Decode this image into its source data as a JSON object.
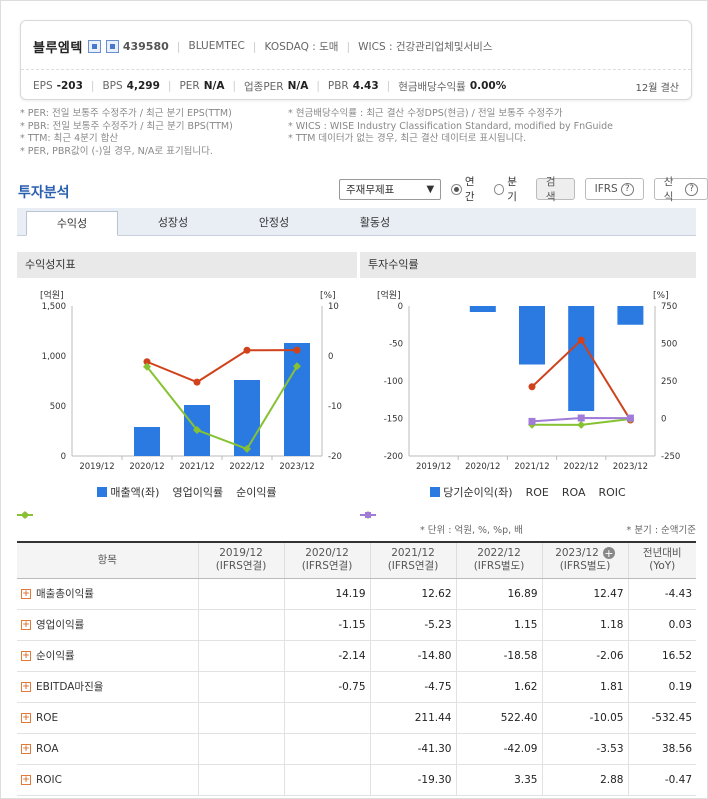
{
  "company": {
    "name": "블루엠텍",
    "code": "439580",
    "eng_name": "BLUEMTEC",
    "market": "KOSDAQ : 도매",
    "wics": "WICS : 건강관리업체및서비스",
    "fiscal": "12월 결산"
  },
  "metrics": [
    {
      "label": "EPS",
      "value": "-203"
    },
    {
      "label": "BPS",
      "value": "4,299"
    },
    {
      "label": "PER",
      "value": "N/A"
    },
    {
      "label": "업종PER",
      "value": "N/A"
    },
    {
      "label": "PBR",
      "value": "4.43"
    },
    {
      "label": "현금배당수익률",
      "value": "0.00%"
    }
  ],
  "notes": {
    "col1": [
      "* PER: 전일 보통주 수정주가 / 최근 분기 EPS(TTM)",
      "* PBR: 전일 보통주 수정주가 / 최근 분기 BPS(TTM)",
      "* TTM: 최근 4분기 합산",
      "* PER, PBR값이 (-)일 경우, N/A로 표기됩니다."
    ],
    "col2": [
      "* 현금배당수익률 : 최근 결산 수정DPS(현금) / 전일 보통주 수정주가",
      "* WICS : WISE Industry Classification Standard, modified by FnGuide",
      "* TTM 데이터가 없는 경우, 최근 결산 데이터로 표시됩니다."
    ]
  },
  "section": {
    "title": "투자분석",
    "select_value": "주재무제표",
    "radio_annual": "연간",
    "radio_quarter": "분기",
    "search_label": "검색",
    "ifrs_label": "IFRS",
    "formula_label": "산식"
  },
  "tabs": [
    "수익성",
    "성장성",
    "안정성",
    "활동성"
  ],
  "panels": {
    "left_title": "수익성지표",
    "right_title": "투자수익률"
  },
  "colors": {
    "bar": "#2a7ae2",
    "op_line": "#d0421b",
    "net_line": "#86c232",
    "roic": "#a07cd8"
  },
  "chart_data": [
    {
      "type": "bar",
      "title": "수익성지표",
      "categories": [
        "2019/12",
        "2020/12",
        "2021/12",
        "2022/12",
        "2023/12"
      ],
      "y_left_unit": "[억원]",
      "y_right_unit": "[%]",
      "ylim_left": [
        0,
        1500
      ],
      "ylim_right": [
        -20,
        10
      ],
      "left_ticks": [
        "0",
        "500",
        "1,000",
        "1,500"
      ],
      "right_ticks": [
        "-20",
        "-10",
        "0",
        "10"
      ],
      "series": [
        {
          "name": "매출액(좌)",
          "kind": "bar",
          "axis": "left",
          "values": [
            null,
            290,
            510,
            760,
            1130
          ]
        },
        {
          "name": "영업이익률",
          "kind": "line",
          "axis": "right",
          "values": [
            null,
            -1.15,
            -5.23,
            1.15,
            1.18
          ]
        },
        {
          "name": "순이익률",
          "kind": "line",
          "axis": "right",
          "values": [
            null,
            -2.14,
            -14.8,
            -18.58,
            -2.06
          ]
        }
      ]
    },
    {
      "type": "bar",
      "title": "투자수익률",
      "categories": [
        "2019/12",
        "2020/12",
        "2021/12",
        "2022/12",
        "2023/12"
      ],
      "y_left_unit": "[억원]",
      "y_right_unit": "[%]",
      "ylim_left": [
        -200,
        0
      ],
      "ylim_right": [
        -250,
        750
      ],
      "left_ticks": [
        "-200",
        "-150",
        "-100",
        "-50",
        "0"
      ],
      "right_ticks": [
        "-250",
        "0",
        "250",
        "500",
        "750"
      ],
      "series": [
        {
          "name": "당기순이익(좌)",
          "kind": "bar",
          "axis": "left",
          "values": [
            null,
            -8,
            -78,
            -140,
            -25
          ]
        },
        {
          "name": "ROE",
          "kind": "line",
          "axis": "right",
          "values": [
            null,
            null,
            211.44,
            522.4,
            -10.05
          ]
        },
        {
          "name": "ROA",
          "kind": "line",
          "axis": "right",
          "values": [
            null,
            null,
            -41.3,
            -42.09,
            -3.53
          ]
        },
        {
          "name": "ROIC",
          "kind": "line",
          "axis": "right",
          "values": [
            null,
            null,
            -19.3,
            3.35,
            2.88
          ]
        }
      ]
    }
  ],
  "table": {
    "unit_note": "* 단위 : 억원, %, %p, 배",
    "quarter_note": "* 분기 : 순액기준",
    "headers": [
      {
        "l1": "항목",
        "l2": ""
      },
      {
        "l1": "2019/12",
        "l2": "(IFRS연결)"
      },
      {
        "l1": "2020/12",
        "l2": "(IFRS연결)"
      },
      {
        "l1": "2021/12",
        "l2": "(IFRS연결)"
      },
      {
        "l1": "2022/12",
        "l2": "(IFRS별도)"
      },
      {
        "l1": "2023/12",
        "l2": "(IFRS별도)"
      },
      {
        "l1": "전년대비",
        "l2": "(YoY)"
      }
    ],
    "rows": [
      {
        "label": "매출총이익률",
        "cells": [
          "",
          "14.19",
          "12.62",
          "16.89",
          "12.47",
          "-4.43"
        ]
      },
      {
        "label": "영업이익률",
        "cells": [
          "",
          "-1.15",
          "-5.23",
          "1.15",
          "1.18",
          "0.03"
        ]
      },
      {
        "label": "순이익률",
        "cells": [
          "",
          "-2.14",
          "-14.80",
          "-18.58",
          "-2.06",
          "16.52"
        ]
      },
      {
        "label": "EBITDA마진율",
        "cells": [
          "",
          "-0.75",
          "-4.75",
          "1.62",
          "1.81",
          "0.19"
        ]
      },
      {
        "label": "ROE",
        "cells": [
          "",
          "",
          "211.44",
          "522.40",
          "-10.05",
          "-532.45"
        ]
      },
      {
        "label": "ROA",
        "cells": [
          "",
          "",
          "-41.30",
          "-42.09",
          "-3.53",
          "38.56"
        ]
      },
      {
        "label": "ROIC",
        "cells": [
          "",
          "",
          "-19.30",
          "3.35",
          "2.88",
          "-0.47"
        ]
      }
    ]
  }
}
